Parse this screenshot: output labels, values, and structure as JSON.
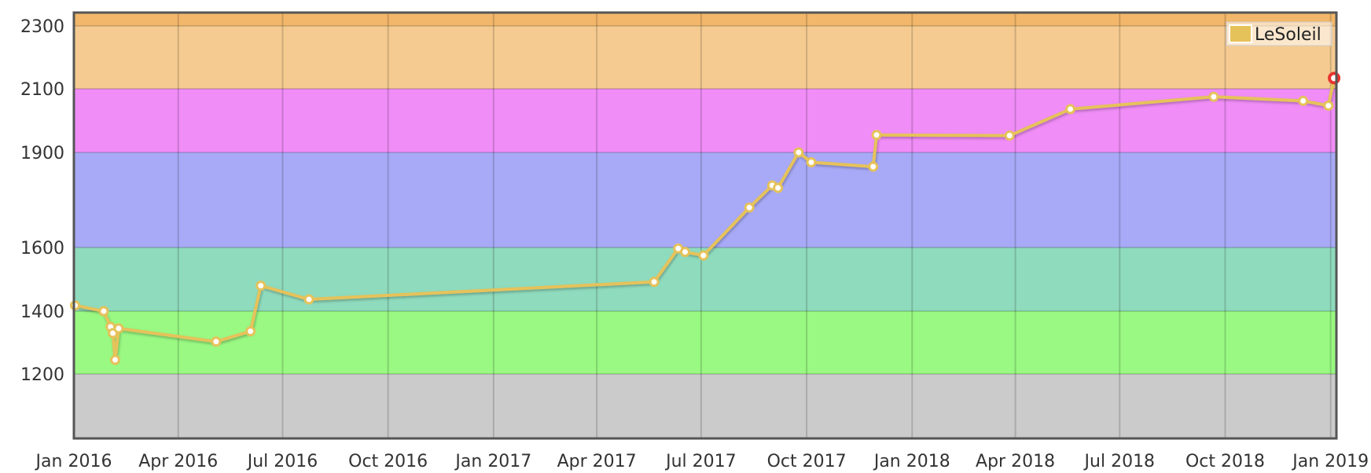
{
  "chart_data": {
    "type": "line",
    "title": "",
    "xlabel": "",
    "ylabel": "",
    "x_range": [
      "2016-01-01",
      "2019-01-06"
    ],
    "ylim": [
      1000,
      2340
    ],
    "grid": true,
    "legend_position": "top-right",
    "rating_bands": [
      {
        "from": 1000,
        "to": 1200,
        "color": "#cbcbcb"
      },
      {
        "from": 1200,
        "to": 1400,
        "color": "#99f982"
      },
      {
        "from": 1400,
        "to": 1600,
        "color": "#8fdbbd"
      },
      {
        "from": 1600,
        "to": 1900,
        "color": "#a8aaf7"
      },
      {
        "from": 1900,
        "to": 2100,
        "color": "#f08df7"
      },
      {
        "from": 2100,
        "to": 2300,
        "color": "#f5cb91"
      },
      {
        "from": 2300,
        "to": 2340,
        "color": "#f2b76a"
      }
    ],
    "y_ticks": [
      "1200",
      "1400",
      "1600",
      "1900",
      "2100",
      "2300"
    ],
    "x_ticks": [
      {
        "date": "2016-01-01",
        "label": "Jan 2016"
      },
      {
        "date": "2016-04-01",
        "label": "Apr 2016"
      },
      {
        "date": "2016-07-01",
        "label": "Jul 2016"
      },
      {
        "date": "2016-10-01",
        "label": "Oct 2016"
      },
      {
        "date": "2017-01-01",
        "label": "Jan 2017"
      },
      {
        "date": "2017-04-01",
        "label": "Apr 2017"
      },
      {
        "date": "2017-07-01",
        "label": "Jul 2017"
      },
      {
        "date": "2017-10-01",
        "label": "Oct 2017"
      },
      {
        "date": "2018-01-01",
        "label": "Jan 2018"
      },
      {
        "date": "2018-04-01",
        "label": "Apr 2018"
      },
      {
        "date": "2018-07-01",
        "label": "Jul 2018"
      },
      {
        "date": "2018-10-01",
        "label": "Oct 2018"
      },
      {
        "date": "2019-01-01",
        "label": "Jan 2019"
      }
    ],
    "series": [
      {
        "name": "LeSoleil",
        "color": "#e6c25a",
        "highlight_color": "#e8332e",
        "points": [
          {
            "x": "2016-01-02",
            "y": 1418
          },
          {
            "x": "2016-01-27",
            "y": 1400
          },
          {
            "x": "2016-02-02",
            "y": 1350
          },
          {
            "x": "2016-02-04",
            "y": 1330
          },
          {
            "x": "2016-02-06",
            "y": 1245
          },
          {
            "x": "2016-02-09",
            "y": 1345
          },
          {
            "x": "2016-05-04",
            "y": 1303
          },
          {
            "x": "2016-06-03",
            "y": 1336
          },
          {
            "x": "2016-06-12",
            "y": 1480
          },
          {
            "x": "2016-07-24",
            "y": 1437
          },
          {
            "x": "2017-05-21",
            "y": 1492
          },
          {
            "x": "2017-06-11",
            "y": 1597
          },
          {
            "x": "2017-06-17",
            "y": 1586
          },
          {
            "x": "2017-07-03",
            "y": 1575
          },
          {
            "x": "2017-08-12",
            "y": 1726
          },
          {
            "x": "2017-09-01",
            "y": 1796
          },
          {
            "x": "2017-09-06",
            "y": 1788
          },
          {
            "x": "2017-09-24",
            "y": 1900
          },
          {
            "x": "2017-10-05",
            "y": 1869
          },
          {
            "x": "2017-11-28",
            "y": 1855
          },
          {
            "x": "2017-12-01",
            "y": 1955
          },
          {
            "x": "2018-03-27",
            "y": 1953
          },
          {
            "x": "2018-05-19",
            "y": 2036
          },
          {
            "x": "2018-09-21",
            "y": 2075
          },
          {
            "x": "2018-12-08",
            "y": 2062
          },
          {
            "x": "2018-12-30",
            "y": 2047
          },
          {
            "x": "2019-01-04",
            "y": 2134
          }
        ]
      }
    ]
  }
}
